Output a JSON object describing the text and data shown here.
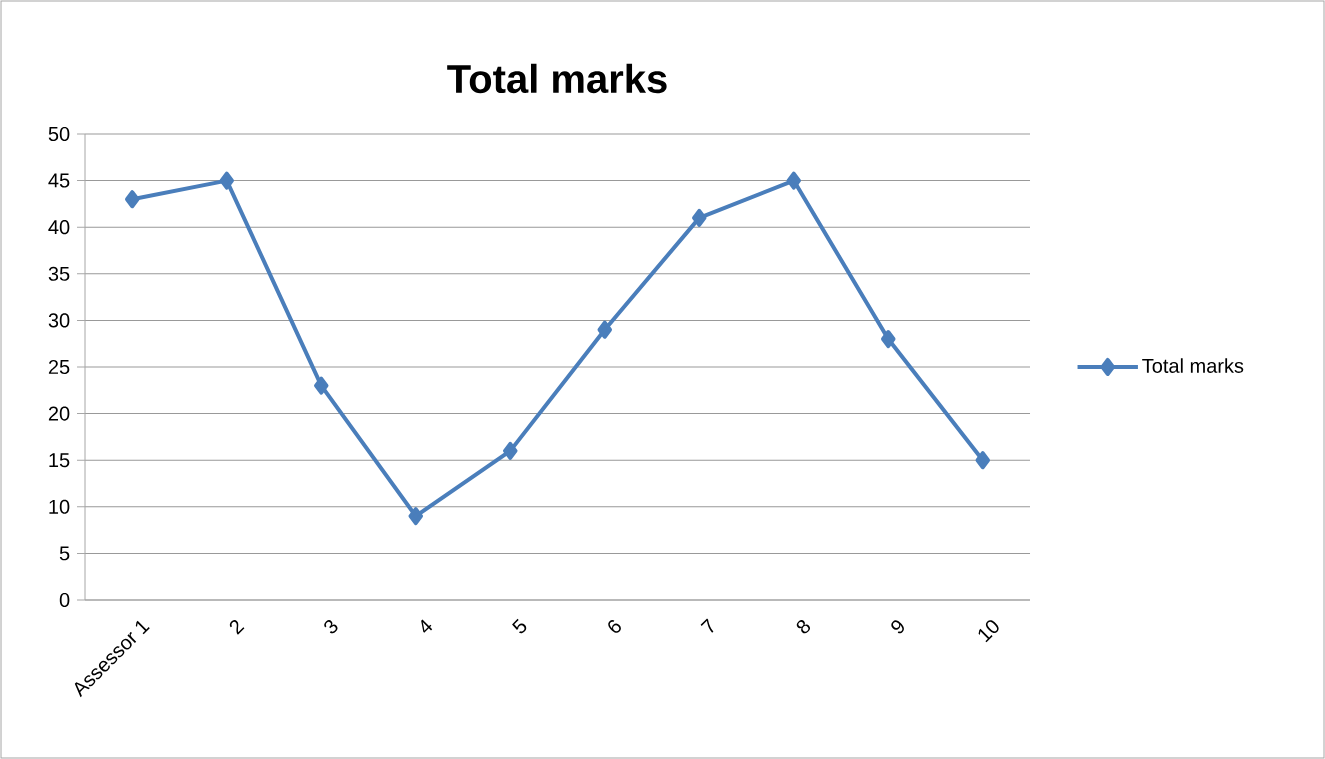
{
  "chart_data": {
    "type": "line",
    "title": "Total marks",
    "categories": [
      "Assessor 1",
      "2",
      "3",
      "4",
      "5",
      "6",
      "7",
      "8",
      "9",
      "10"
    ],
    "series": [
      {
        "name": "Total marks",
        "color": "#4a7ebb",
        "values": [
          43,
          45,
          23,
          9,
          16,
          29,
          41,
          45,
          28,
          15
        ]
      }
    ],
    "ylim": [
      0,
      50
    ],
    "yticks": [
      0,
      5,
      10,
      15,
      20,
      25,
      30,
      35,
      40,
      45,
      50
    ],
    "grid": "y",
    "legend": "right",
    "marker": "diamond",
    "line_style": "solid"
  }
}
